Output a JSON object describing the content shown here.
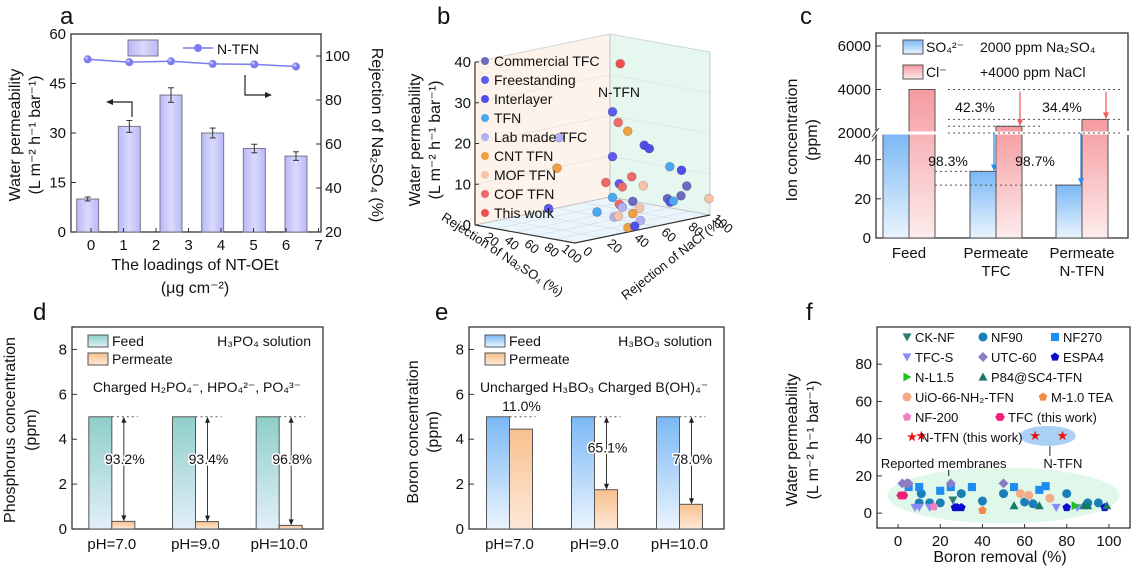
{
  "figure": {
    "panels": [
      "a",
      "b",
      "c",
      "d",
      "e",
      "f"
    ]
  },
  "chart_data": [
    {
      "panel": "a",
      "type": "bar",
      "title": "",
      "xlabel": "The loadings of NT-OEt",
      "xlabel2": "(μg cm⁻²)",
      "ylabel": "Water permeability",
      "ylabel2": "(L m⁻² h⁻¹ bar⁻¹)",
      "y2label": "Rejection of Na₂SO₄ (%)",
      "xlim": [
        -0.5,
        7
      ],
      "xticks": [
        "0",
        "1",
        "2",
        "3",
        "4",
        "5",
        "6",
        "7"
      ],
      "ylim": [
        0,
        60
      ],
      "yticks": [
        "0",
        "15",
        "30",
        "45",
        "60"
      ],
      "y2lim": [
        20,
        110
      ],
      "y2ticks": [
        "20",
        "40",
        "60",
        "80",
        "100"
      ],
      "x": [
        0,
        1.25,
        2.5,
        3.75,
        5,
        6.25
      ],
      "series": [
        {
          "name": "Water permeability",
          "axis": "left",
          "kind": "bar",
          "values": [
            10,
            32,
            41.5,
            30,
            25.3,
            23
          ],
          "errors": [
            0.6,
            1.8,
            2.2,
            1.5,
            1.3,
            1.3
          ]
        },
        {
          "name": "N-TFN",
          "axis": "right",
          "kind": "line",
          "values": [
            98.5,
            97.2,
            97.6,
            96.4,
            96.2,
            95.2
          ]
        }
      ],
      "legend": {
        "bar_label": "",
        "line_label": "N-TFN",
        "placement": "top"
      },
      "colors": {
        "bar": "#c8c8fb",
        "bar_edge": "#777788",
        "line": "#7c7cf0"
      }
    },
    {
      "panel": "b",
      "type": "scatter",
      "title": "",
      "xlabel": "Rejection of Na₂SO₄ (%)",
      "zlabel": "Rejection of NaCl (%)",
      "ylabel": "Water permeability",
      "ylabel2": "(L m⁻² h⁻¹ bar⁻¹)",
      "yticks": [
        "0",
        "10",
        "20",
        "30",
        "40"
      ],
      "xticks": [
        "20",
        "40",
        "60",
        "80",
        "100"
      ],
      "zticks": [
        "0",
        "20",
        "40",
        "60",
        "80",
        "100"
      ],
      "annotation": "N-TFN",
      "legend": [
        {
          "label": "Commercial TFC",
          "color": "#6a6ac0"
        },
        {
          "label": "Freestanding",
          "color": "#5c5cf0"
        },
        {
          "label": "Interlayer",
          "color": "#5050e8"
        },
        {
          "label": "TFN",
          "color": "#4aa8f0"
        },
        {
          "label": "Lab made TFC",
          "color": "#b0b0f5"
        },
        {
          "label": "CNT TFN",
          "color": "#f0a040"
        },
        {
          "label": "MOF TFN",
          "color": "#f5c4a8"
        },
        {
          "label": "COF TFN",
          "color": "#f06a6a"
        },
        {
          "label": "This work",
          "color": "#f05050"
        }
      ],
      "points": [
        {
          "group": "This work",
          "na2so4": 98,
          "nacl": 35,
          "perm": 41.5
        },
        {
          "group": "Freestanding",
          "na2so4": 97,
          "nacl": 30,
          "perm": 30
        },
        {
          "group": "COF TFN",
          "na2so4": 96,
          "nacl": 35,
          "perm": 27
        },
        {
          "group": "CNT TFN",
          "na2so4": 92,
          "nacl": 45,
          "perm": 24
        },
        {
          "group": "Interlayer",
          "na2so4": 95,
          "nacl": 55,
          "perm": 20
        },
        {
          "group": "Interlayer",
          "na2so4": 96,
          "nacl": 58,
          "perm": 19
        },
        {
          "group": "Freestanding",
          "na2so4": 97,
          "nacl": 30,
          "perm": 19
        },
        {
          "group": "Lab made TFC",
          "na2so4": 30,
          "nacl": 40,
          "perm": 20
        },
        {
          "group": "CNT TFN",
          "na2so4": 55,
          "nacl": 20,
          "perm": 15
        },
        {
          "group": "TFN",
          "na2so4": 80,
          "nacl": 85,
          "perm": 12
        },
        {
          "group": "Interlayer",
          "na2so4": 85,
          "nacl": 90,
          "perm": 11
        },
        {
          "group": "COF TFN",
          "na2so4": 97,
          "nacl": 25,
          "perm": 13
        },
        {
          "group": "Freestanding",
          "na2so4": 97,
          "nacl": 35,
          "perm": 12
        },
        {
          "group": "COF TFN",
          "na2so4": 96,
          "nacl": 45,
          "perm": 13
        },
        {
          "group": "COF TFN",
          "na2so4": 96,
          "nacl": 38,
          "perm": 11
        },
        {
          "group": "MOF TFN",
          "na2so4": 94,
          "nacl": 55,
          "perm": 10
        },
        {
          "group": "Commercial TFC",
          "na2so4": 97,
          "nacl": 85,
          "perm": 8
        },
        {
          "group": "TFN",
          "na2so4": 97,
          "nacl": 30,
          "perm": 9
        },
        {
          "group": "COF TFN",
          "na2so4": 97,
          "nacl": 35,
          "perm": 7
        },
        {
          "group": "Commercial TFC",
          "na2so4": 97,
          "nacl": 45,
          "perm": 7
        },
        {
          "group": "Commercial TFC",
          "na2so4": 98,
          "nacl": 70,
          "perm": 6
        },
        {
          "group": "Interlayer",
          "na2so4": 98,
          "nacl": 72,
          "perm": 5
        },
        {
          "group": "Commercial TFC",
          "na2so4": 98,
          "nacl": 80,
          "perm": 6
        },
        {
          "group": "TFN",
          "na2so4": 97,
          "nacl": 75,
          "perm": 5
        },
        {
          "group": "Freestanding",
          "na2so4": 60,
          "nacl": 10,
          "perm": 6
        },
        {
          "group": "TFN",
          "na2so4": 95,
          "nacl": 20,
          "perm": 6
        },
        {
          "group": "Lab made TFC",
          "na2so4": 96,
          "nacl": 38,
          "perm": 6
        },
        {
          "group": "CNT TFN",
          "na2so4": 97,
          "nacl": 45,
          "perm": 4
        },
        {
          "group": "MOF TFN",
          "na2so4": 97,
          "nacl": 50,
          "perm": 5
        },
        {
          "group": "Lab made TFC",
          "na2so4": 96,
          "nacl": 32,
          "perm": 4
        },
        {
          "group": "MOF TFN",
          "na2so4": 96,
          "nacl": 35,
          "perm": 4
        },
        {
          "group": "MOF TFN",
          "na2so4": 99,
          "nacl": 100,
          "perm": 4
        },
        {
          "group": "Lab made TFC",
          "na2so4": 98,
          "nacl": 50,
          "perm": 2
        },
        {
          "group": "CNT TFN",
          "na2so4": 99,
          "nacl": 40,
          "perm": 1
        },
        {
          "group": "Interlayer",
          "na2so4": 99,
          "nacl": 45,
          "perm": 1
        }
      ]
    },
    {
      "panel": "c",
      "type": "bar",
      "title": "",
      "xlabel": "",
      "ylabel": "Ion concentration",
      "ylabel2": "(ppm)",
      "categories": [
        "Feed",
        "Permeate\nTFC",
        "Permeate\nN-TFN"
      ],
      "category_lines": [
        [
          "Feed"
        ],
        [
          "Permeate",
          "TFC"
        ],
        [
          "Permeate",
          "N-TFN"
        ]
      ],
      "broken_axis": {
        "lower": [
          0,
          50
        ],
        "upper": [
          2000,
          6000
        ]
      },
      "yticks_lower": [
        "0",
        "20",
        "40"
      ],
      "yticks_upper": [
        "2000",
        "4000",
        "6000"
      ],
      "series": [
        {
          "name": "SO₄²⁻",
          "values": [
            2000,
            34,
            27
          ],
          "color": "#5aa8f5"
        },
        {
          "name": "Cl⁻",
          "values": [
            4000,
            2310,
            2624
          ],
          "color": "#f08f90"
        }
      ],
      "legend": [
        {
          "label": "SO₄²⁻",
          "note": "2000 ppm Na₂SO₄"
        },
        {
          "label": "Cl⁻",
          "note": "+4000 ppm NaCl"
        }
      ],
      "annotations": [
        {
          "text": "42.3%",
          "category": 1,
          "series": "Cl⁻"
        },
        {
          "text": "34.4%",
          "category": 2,
          "series": "Cl⁻"
        },
        {
          "text": "98.3%",
          "category": 1,
          "series": "SO₄²⁻"
        },
        {
          "text": "98.7%",
          "category": 2,
          "series": "SO₄²⁻"
        }
      ]
    },
    {
      "panel": "d",
      "type": "bar",
      "title": "",
      "xlabel": "",
      "ylabel": "Phosphorus concentration",
      "ylabel2": "(ppm)",
      "ylim": [
        0,
        9
      ],
      "yticks": [
        "0",
        "2",
        "4",
        "6",
        "8"
      ],
      "categories": [
        "pH=7.0",
        "pH=9.0",
        "pH=10.0"
      ],
      "series": [
        {
          "name": "Feed",
          "values": [
            5,
            5,
            5
          ]
        },
        {
          "name": "Permeate",
          "values": [
            0.34,
            0.33,
            0.16
          ]
        }
      ],
      "legend": [
        "Feed",
        "Permeate"
      ],
      "solution_label": "H₃PO₄ solution",
      "species_label": "Charged H₂PO₄⁻, HPO₄²⁻, PO₄³⁻",
      "rejections": [
        "93.2%",
        "93.4%",
        "96.8%"
      ]
    },
    {
      "panel": "e",
      "type": "bar",
      "title": "",
      "xlabel": "",
      "ylabel": "Boron concentration",
      "ylabel2": "(ppm)",
      "ylim": [
        0,
        9
      ],
      "yticks": [
        "0",
        "2",
        "4",
        "6",
        "8"
      ],
      "categories": [
        "pH=7.0",
        "pH=9.0",
        "pH=10.0"
      ],
      "series": [
        {
          "name": "Feed",
          "values": [
            5,
            5,
            5
          ]
        },
        {
          "name": "Permeate",
          "values": [
            4.45,
            1.75,
            1.1
          ]
        }
      ],
      "legend": [
        "Feed",
        "Permeate"
      ],
      "solution_label": "H₃BO₃ solution",
      "species_labels": [
        "Uncharged H₃BO₃",
        "Charged B(OH)₄⁻"
      ],
      "rejections": [
        "11.0%",
        "65.1%",
        "78.0%"
      ]
    },
    {
      "panel": "f",
      "type": "scatter",
      "title": "",
      "xlabel": "Boron removal (%)",
      "ylabel": "Water permeability",
      "ylabel2": "(L m⁻² h⁻¹ bar⁻¹)",
      "xlim": [
        -10,
        110
      ],
      "xticks": [
        "0",
        "20",
        "40",
        "60",
        "80",
        "100"
      ],
      "ylim": [
        -8,
        100
      ],
      "yticks": [
        "0",
        "20",
        "40",
        "60",
        "80"
      ],
      "annotations": [
        {
          "text": "Reported membranes",
          "x": 24,
          "y": 27
        },
        {
          "text": "N-TFN",
          "x": 72,
          "y": 27
        }
      ],
      "series": [
        {
          "name": "CK-NF",
          "marker": "triangle-down",
          "color": "#2e7d73",
          "points": [
            [
              26,
              7
            ]
          ]
        },
        {
          "name": "NF90",
          "marker": "circle",
          "color": "#1a7fb8",
          "points": [
            [
              11,
              10.5
            ],
            [
              10,
              5.5
            ],
            [
              15,
              5.5
            ],
            [
              20,
              5.5
            ],
            [
              30,
              10.5
            ],
            [
              40,
              6.5
            ],
            [
              50,
              10.5
            ],
            [
              60,
              6
            ],
            [
              80,
              10.5
            ],
            [
              90,
              5.5
            ],
            [
              95,
              5.5
            ],
            [
              64,
              5
            ]
          ]
        },
        {
          "name": "NF270",
          "marker": "square",
          "color": "#1e8cf0",
          "points": [
            [
              5,
              14
            ],
            [
              10,
              14
            ],
            [
              20,
              12
            ],
            [
              25,
              14
            ],
            [
              35,
              14
            ],
            [
              55,
              14
            ],
            [
              67,
              12.5
            ],
            [
              70,
              14.5
            ]
          ]
        },
        {
          "name": "TFC-S",
          "marker": "triangle-down",
          "color": "#8a8af5",
          "points": [
            [
              8,
              3
            ],
            [
              10,
              3
            ],
            [
              15,
              3
            ],
            [
              75,
              3
            ],
            [
              85,
              3
            ]
          ]
        },
        {
          "name": "UTC-60",
          "marker": "diamond",
          "color": "#8c7cc4",
          "points": [
            [
              2,
              16
            ],
            [
              4,
              16
            ],
            [
              5,
              16
            ],
            [
              25,
              16
            ],
            [
              50,
              16
            ]
          ]
        },
        {
          "name": "ESPA4",
          "marker": "pentagon",
          "color": "#0a0ad0",
          "points": [
            [
              27,
              3
            ],
            [
              28,
              3
            ],
            [
              30,
              3
            ],
            [
              80,
              3
            ],
            [
              98,
              3
            ]
          ]
        },
        {
          "name": "N-L1.5",
          "marker": "triangle-right",
          "color": "#20c020",
          "points": [
            [
              84,
              4
            ]
          ]
        },
        {
          "name": "P84@SC4-TFN",
          "marker": "triangle-up",
          "color": "#1a7a6a",
          "points": [
            [
              55,
              4
            ],
            [
              67,
              4
            ],
            [
              88,
              4
            ],
            [
              90,
              4
            ],
            [
              99,
              4
            ]
          ]
        },
        {
          "name": "UiO-66-NH₂-TFN",
          "marker": "circle",
          "color": "#f5aa88",
          "points": [
            [
              58,
              10.5
            ],
            [
              62,
              9.5
            ],
            [
              72,
              8
            ]
          ]
        },
        {
          "name": "M-1.0 TEA",
          "marker": "pentagon",
          "color": "#f08848",
          "points": [
            [
              40,
              1.5
            ]
          ]
        },
        {
          "name": "NF-200",
          "marker": "pentagon",
          "color": "#f080c0",
          "points": [
            [
              17,
              3.5
            ]
          ]
        },
        {
          "name": "TFC (this work)",
          "marker": "hexagon",
          "color": "#f0207a",
          "points": [
            [
              1.5,
              9.5
            ],
            [
              2.5,
              9.5
            ]
          ]
        },
        {
          "name": "N-TFN (this work)",
          "marker": "star",
          "color": "#f01010",
          "points": [
            [
              11,
              41.5
            ],
            [
              65,
              41.5
            ],
            [
              78,
              41.5
            ]
          ]
        }
      ]
    }
  ]
}
